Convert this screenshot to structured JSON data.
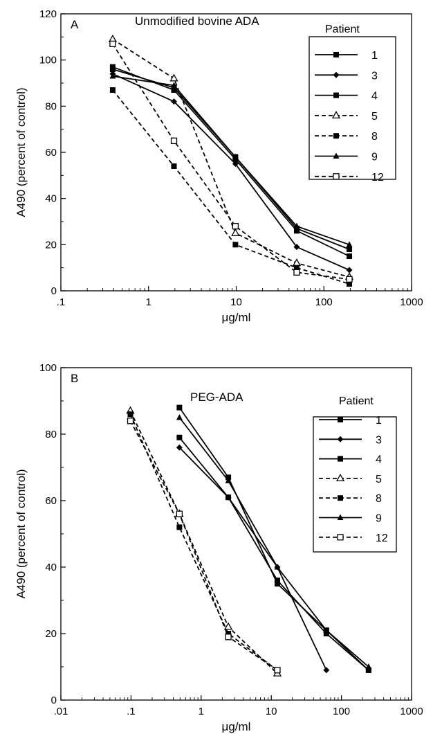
{
  "chart_data": [
    {
      "type": "line",
      "panel_label": "A",
      "title": "Unmodified bovine ADA",
      "xlabel": "μg/ml",
      "ylabel": "A490 (percent of control)",
      "xscale": "log",
      "xlim": [
        0.1,
        1000
      ],
      "ylim": [
        0,
        120
      ],
      "xticks": [
        0.1,
        1,
        10,
        100,
        1000
      ],
      "xtick_labels": [
        ".1",
        "1",
        "10",
        "100",
        "1000"
      ],
      "yticks": [
        0,
        20,
        40,
        60,
        80,
        100,
        120
      ],
      "ytick_labels": [
        "0",
        "20",
        "40",
        "60",
        "80",
        "100",
        "120"
      ],
      "grid": false,
      "legend_title": "Patient",
      "legend_position": "top-right",
      "x": [
        0.39,
        1.95,
        9.8,
        49,
        195
      ],
      "series": [
        {
          "name": "1",
          "dash": "solid",
          "marker": "square",
          "values": [
            96,
            88,
            58,
            27,
            18
          ]
        },
        {
          "name": "3",
          "dash": "solid",
          "marker": "diamond",
          "values": [
            94,
            82,
            55,
            19,
            9
          ]
        },
        {
          "name": "4",
          "dash": "solid",
          "marker": "square",
          "values": [
            97,
            87,
            57,
            26,
            15
          ]
        },
        {
          "name": "5",
          "dash": "dashed",
          "marker": "open-triangle",
          "values": [
            109,
            92,
            25,
            12,
            6
          ]
        },
        {
          "name": "8",
          "dash": "dashed",
          "marker": "square",
          "values": [
            87,
            54,
            20,
            10,
            3
          ]
        },
        {
          "name": "9",
          "dash": "solid",
          "marker": "triangle",
          "values": [
            93,
            89,
            58,
            28,
            20
          ]
        },
        {
          "name": "12",
          "dash": "dashed",
          "marker": "open-square",
          "values": [
            107,
            65,
            28,
            8,
            5
          ]
        }
      ]
    },
    {
      "type": "line",
      "panel_label": "B",
      "title": "PEG-ADA",
      "xlabel": "μg/ml",
      "ylabel": "A490 (percent of control)",
      "xscale": "log",
      "xlim": [
        0.01,
        1000
      ],
      "ylim": [
        0,
        100
      ],
      "xticks": [
        0.01,
        0.1,
        1,
        10,
        100,
        1000
      ],
      "xtick_labels": [
        ".01",
        ".1",
        "1",
        "10",
        "100",
        "1000"
      ],
      "yticks": [
        0,
        20,
        40,
        60,
        80,
        100
      ],
      "ytick_labels": [
        "0",
        "20",
        "40",
        "60",
        "80",
        "100"
      ],
      "grid": false,
      "legend_title": "Patient",
      "legend_position": "top-right",
      "series": [
        {
          "name": "1",
          "dash": "solid",
          "marker": "square",
          "x": [
            0.49,
            2.44,
            12.2,
            61,
            244
          ],
          "values": [
            88,
            67,
            35,
            21,
            9
          ]
        },
        {
          "name": "3",
          "dash": "solid",
          "marker": "diamond",
          "x": [
            0.49,
            2.44,
            12.2,
            61
          ],
          "values": [
            76,
            61,
            40,
            9
          ]
        },
        {
          "name": "4",
          "dash": "solid",
          "marker": "square",
          "x": [
            0.49,
            2.44,
            12.2,
            61,
            244
          ],
          "values": [
            79,
            61,
            36,
            20,
            9
          ]
        },
        {
          "name": "5",
          "dash": "dashed",
          "marker": "open-triangle",
          "x": [
            0.098,
            0.49,
            2.44,
            12.2
          ],
          "values": [
            87,
            56,
            22,
            8
          ]
        },
        {
          "name": "8",
          "dash": "dashed",
          "marker": "square",
          "x": [
            0.098,
            0.49,
            2.44,
            12.2
          ],
          "values": [
            86,
            52,
            20,
            9
          ]
        },
        {
          "name": "9",
          "dash": "solid",
          "marker": "triangle",
          "x": [
            0.49,
            2.44,
            12.2,
            61,
            244
          ],
          "values": [
            85,
            66,
            40,
            21,
            10
          ]
        },
        {
          "name": "12",
          "dash": "dashed",
          "marker": "open-square",
          "x": [
            0.098,
            0.49,
            2.44,
            12.2
          ],
          "values": [
            84,
            56,
            19,
            9
          ]
        }
      ]
    }
  ]
}
